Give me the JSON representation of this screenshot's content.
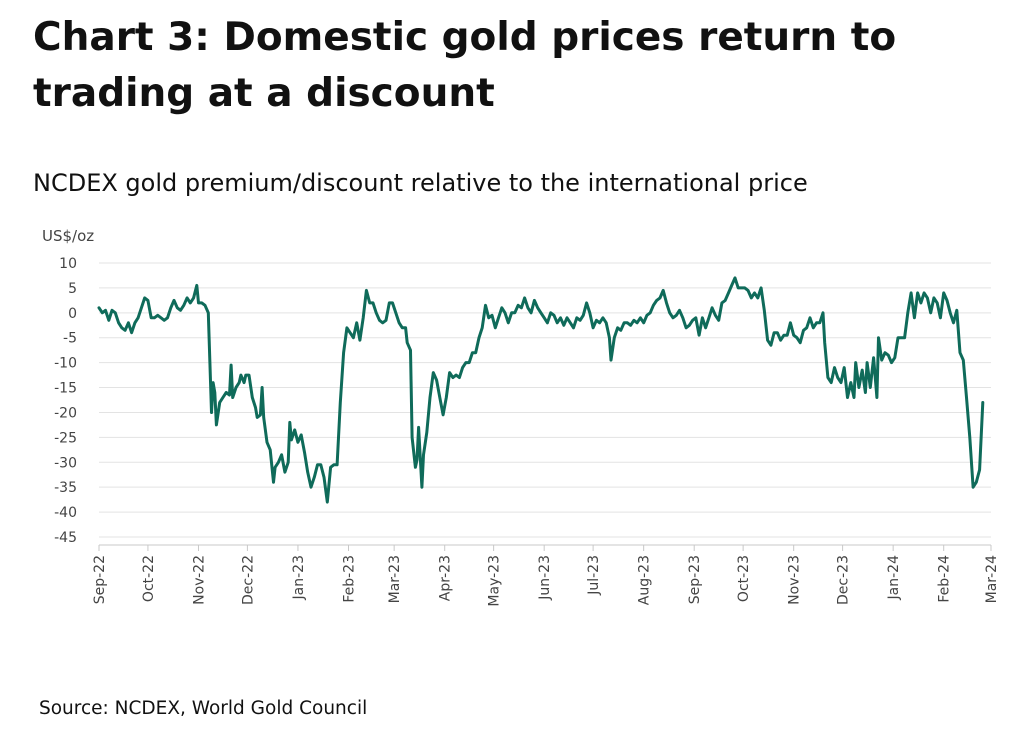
{
  "title": "Chart 3: Domestic gold prices return to trading at a discount",
  "subtitle": "NCDEX gold premium/discount relative to the international price",
  "source": "Source: NCDEX, World Gold Council",
  "colors": {
    "line": "#0f6b5a",
    "grid": "#e3e3e3",
    "text": "#111111"
  },
  "chart_data": {
    "type": "line",
    "ylabel": "US$/oz",
    "ylim": [
      -45,
      10
    ],
    "yticks": [
      10,
      5,
      0,
      -5,
      -10,
      -15,
      -20,
      -25,
      -30,
      -35,
      -40,
      -45
    ],
    "xticks": [
      "Sep-22",
      "Oct-22",
      "Nov-22",
      "Dec-22",
      "Jan-23",
      "Feb-23",
      "Mar-23",
      "Apr-23",
      "May-23",
      "Jun-23",
      "Jul-23",
      "Aug-23",
      "Sep-23",
      "Oct-23",
      "Nov-23",
      "Dec-23",
      "Jan-24",
      "Feb-24",
      "Mar-24"
    ],
    "grid": "horizontal",
    "legend": "none",
    "series": [
      {
        "values": [
          [
            "2022-09-01",
            1
          ],
          [
            "2022-09-03",
            0
          ],
          [
            "2022-09-05",
            0.5
          ],
          [
            "2022-09-07",
            -1.5
          ],
          [
            "2022-09-09",
            0.5
          ],
          [
            "2022-09-11",
            0
          ],
          [
            "2022-09-13",
            -2
          ],
          [
            "2022-09-15",
            -3
          ],
          [
            "2022-09-17",
            -3.5
          ],
          [
            "2022-09-19",
            -2
          ],
          [
            "2022-09-21",
            -4
          ],
          [
            "2022-09-23",
            -2
          ],
          [
            "2022-09-25",
            -1
          ],
          [
            "2022-09-27",
            1
          ],
          [
            "2022-09-29",
            3
          ],
          [
            "2022-10-01",
            2.5
          ],
          [
            "2022-10-03",
            -1
          ],
          [
            "2022-10-05",
            -1
          ],
          [
            "2022-10-07",
            -0.5
          ],
          [
            "2022-10-09",
            -1
          ],
          [
            "2022-10-11",
            -1.5
          ],
          [
            "2022-10-13",
            -1
          ],
          [
            "2022-10-15",
            1
          ],
          [
            "2022-10-17",
            2.5
          ],
          [
            "2022-10-19",
            1
          ],
          [
            "2022-10-21",
            0.5
          ],
          [
            "2022-10-23",
            1.5
          ],
          [
            "2022-10-25",
            3
          ],
          [
            "2022-10-27",
            2
          ],
          [
            "2022-10-29",
            3
          ],
          [
            "2022-10-31",
            5.5
          ],
          [
            "2022-11-01",
            2
          ],
          [
            "2022-11-03",
            2
          ],
          [
            "2022-11-05",
            1.5
          ],
          [
            "2022-11-07",
            0
          ],
          [
            "2022-11-08",
            -10
          ],
          [
            "2022-11-09",
            -20
          ],
          [
            "2022-11-10",
            -14
          ],
          [
            "2022-11-11",
            -16
          ],
          [
            "2022-11-12",
            -22.5
          ],
          [
            "2022-11-14",
            -18
          ],
          [
            "2022-11-16",
            -17
          ],
          [
            "2022-11-18",
            -16
          ],
          [
            "2022-11-20",
            -16.5
          ],
          [
            "2022-11-21",
            -10.5
          ],
          [
            "2022-11-22",
            -17
          ],
          [
            "2022-11-24",
            -15
          ],
          [
            "2022-11-26",
            -14
          ],
          [
            "2022-11-27",
            -12.5
          ],
          [
            "2022-11-29",
            -14
          ],
          [
            "2022-11-30",
            -12.5
          ],
          [
            "2022-12-02",
            -12.5
          ],
          [
            "2022-12-04",
            -17
          ],
          [
            "2022-12-06",
            -19
          ],
          [
            "2022-12-07",
            -21
          ],
          [
            "2022-12-09",
            -20.5
          ],
          [
            "2022-12-10",
            -15
          ],
          [
            "2022-12-11",
            -21
          ],
          [
            "2022-12-13",
            -26
          ],
          [
            "2022-12-15",
            -27.5
          ],
          [
            "2022-12-17",
            -34
          ],
          [
            "2022-12-18",
            -31
          ],
          [
            "2022-12-20",
            -30
          ],
          [
            "2022-12-22",
            -28.5
          ],
          [
            "2022-12-24",
            -32
          ],
          [
            "2022-12-26",
            -30
          ],
          [
            "2022-12-27",
            -22
          ],
          [
            "2022-12-28",
            -25.5
          ],
          [
            "2022-12-30",
            -23.5
          ],
          [
            "2023-01-01",
            -26
          ],
          [
            "2023-01-03",
            -24.5
          ],
          [
            "2023-01-05",
            -28
          ],
          [
            "2023-01-07",
            -32
          ],
          [
            "2023-01-09",
            -35
          ],
          [
            "2023-01-11",
            -33
          ],
          [
            "2023-01-13",
            -30.5
          ],
          [
            "2023-01-15",
            -30.5
          ],
          [
            "2023-01-17",
            -33
          ],
          [
            "2023-01-19",
            -38
          ],
          [
            "2023-01-21",
            -31
          ],
          [
            "2023-01-23",
            -30.5
          ],
          [
            "2023-01-25",
            -30.5
          ],
          [
            "2023-01-27",
            -18
          ],
          [
            "2023-01-29",
            -8
          ],
          [
            "2023-01-31",
            -3
          ],
          [
            "2023-02-02",
            -4
          ],
          [
            "2023-02-04",
            -5
          ],
          [
            "2023-02-06",
            -2
          ],
          [
            "2023-02-08",
            -5.5
          ],
          [
            "2023-02-10",
            -1
          ],
          [
            "2023-02-12",
            4.5
          ],
          [
            "2023-02-14",
            2
          ],
          [
            "2023-02-16",
            2
          ],
          [
            "2023-02-18",
            0
          ],
          [
            "2023-02-20",
            -1.5
          ],
          [
            "2023-02-22",
            -2
          ],
          [
            "2023-02-24",
            -1.5
          ],
          [
            "2023-02-26",
            2
          ],
          [
            "2023-02-28",
            2
          ],
          [
            "2023-03-02",
            0
          ],
          [
            "2023-03-04",
            -2
          ],
          [
            "2023-03-06",
            -3
          ],
          [
            "2023-03-08",
            -3
          ],
          [
            "2023-03-09",
            -6
          ],
          [
            "2023-03-11",
            -7.5
          ],
          [
            "2023-03-12",
            -25
          ],
          [
            "2023-03-14",
            -31
          ],
          [
            "2023-03-15",
            -29.5
          ],
          [
            "2023-03-16",
            -23
          ],
          [
            "2023-03-18",
            -35
          ],
          [
            "2023-03-19",
            -28.5
          ],
          [
            "2023-03-21",
            -24
          ],
          [
            "2023-03-23",
            -17
          ],
          [
            "2023-03-25",
            -12
          ],
          [
            "2023-03-27",
            -13.5
          ],
          [
            "2023-03-29",
            -17
          ],
          [
            "2023-03-31",
            -20.5
          ],
          [
            "2023-04-02",
            -17
          ],
          [
            "2023-04-04",
            -12
          ],
          [
            "2023-04-06",
            -13
          ],
          [
            "2023-04-08",
            -12.5
          ],
          [
            "2023-04-10",
            -13
          ],
          [
            "2023-04-12",
            -11
          ],
          [
            "2023-04-14",
            -10
          ],
          [
            "2023-04-16",
            -10
          ],
          [
            "2023-04-18",
            -8
          ],
          [
            "2023-04-20",
            -8
          ],
          [
            "2023-04-22",
            -5
          ],
          [
            "2023-04-24",
            -3
          ],
          [
            "2023-04-26",
            1.5
          ],
          [
            "2023-04-28",
            -1
          ],
          [
            "2023-04-30",
            -0.5
          ],
          [
            "2023-05-02",
            -3
          ],
          [
            "2023-05-04",
            -1
          ],
          [
            "2023-05-06",
            1
          ],
          [
            "2023-05-08",
            0
          ],
          [
            "2023-05-10",
            -2
          ],
          [
            "2023-05-12",
            0
          ],
          [
            "2023-05-14",
            0
          ],
          [
            "2023-05-16",
            1.5
          ],
          [
            "2023-05-18",
            1
          ],
          [
            "2023-05-20",
            3
          ],
          [
            "2023-05-22",
            1
          ],
          [
            "2023-05-24",
            0
          ],
          [
            "2023-05-26",
            2.5
          ],
          [
            "2023-05-28",
            1
          ],
          [
            "2023-05-30",
            0
          ],
          [
            "2023-06-01",
            -1
          ],
          [
            "2023-06-03",
            -2
          ],
          [
            "2023-06-05",
            0
          ],
          [
            "2023-06-07",
            -0.5
          ],
          [
            "2023-06-09",
            -2
          ],
          [
            "2023-06-11",
            -1
          ],
          [
            "2023-06-13",
            -2.5
          ],
          [
            "2023-06-15",
            -1
          ],
          [
            "2023-06-17",
            -2
          ],
          [
            "2023-06-19",
            -3
          ],
          [
            "2023-06-21",
            -1
          ],
          [
            "2023-06-23",
            -1.5
          ],
          [
            "2023-06-25",
            -0.5
          ],
          [
            "2023-06-27",
            2
          ],
          [
            "2023-06-29",
            0
          ],
          [
            "2023-07-01",
            -3
          ],
          [
            "2023-07-03",
            -1.5
          ],
          [
            "2023-07-05",
            -2
          ],
          [
            "2023-07-07",
            -1
          ],
          [
            "2023-07-09",
            -2
          ],
          [
            "2023-07-11",
            -5
          ],
          [
            "2023-07-12",
            -9.5
          ],
          [
            "2023-07-14",
            -5
          ],
          [
            "2023-07-16",
            -3
          ],
          [
            "2023-07-18",
            -3.5
          ],
          [
            "2023-07-20",
            -2
          ],
          [
            "2023-07-22",
            -2
          ],
          [
            "2023-07-24",
            -2.5
          ],
          [
            "2023-07-26",
            -1.5
          ],
          [
            "2023-07-28",
            -2
          ],
          [
            "2023-07-30",
            -1
          ],
          [
            "2023-08-01",
            -2
          ],
          [
            "2023-08-03",
            -0.5
          ],
          [
            "2023-08-05",
            0
          ],
          [
            "2023-08-07",
            1.5
          ],
          [
            "2023-08-09",
            2.5
          ],
          [
            "2023-08-11",
            3
          ],
          [
            "2023-08-13",
            4.5
          ],
          [
            "2023-08-15",
            2
          ],
          [
            "2023-08-17",
            0
          ],
          [
            "2023-08-19",
            -1
          ],
          [
            "2023-08-21",
            -0.5
          ],
          [
            "2023-08-23",
            0.5
          ],
          [
            "2023-08-25",
            -1
          ],
          [
            "2023-08-27",
            -3
          ],
          [
            "2023-08-29",
            -2.5
          ],
          [
            "2023-08-31",
            -1.5
          ],
          [
            "2023-09-02",
            -1
          ],
          [
            "2023-09-04",
            -4.5
          ],
          [
            "2023-09-06",
            -1
          ],
          [
            "2023-09-08",
            -3
          ],
          [
            "2023-09-10",
            -1
          ],
          [
            "2023-09-12",
            1
          ],
          [
            "2023-09-14",
            -0.5
          ],
          [
            "2023-09-16",
            -1.5
          ],
          [
            "2023-09-18",
            2
          ],
          [
            "2023-09-20",
            2.5
          ],
          [
            "2023-09-22",
            4
          ],
          [
            "2023-09-24",
            5.5
          ],
          [
            "2023-09-26",
            7
          ],
          [
            "2023-09-28",
            5
          ],
          [
            "2023-09-30",
            5
          ],
          [
            "2023-10-02",
            5
          ],
          [
            "2023-10-04",
            4.5
          ],
          [
            "2023-10-06",
            3
          ],
          [
            "2023-10-08",
            4
          ],
          [
            "2023-10-10",
            3
          ],
          [
            "2023-10-12",
            5
          ],
          [
            "2023-10-14",
            0.5
          ],
          [
            "2023-10-16",
            -5.5
          ],
          [
            "2023-10-18",
            -6.5
          ],
          [
            "2023-10-20",
            -4
          ],
          [
            "2023-10-22",
            -4
          ],
          [
            "2023-10-24",
            -5.5
          ],
          [
            "2023-10-26",
            -4.5
          ],
          [
            "2023-10-28",
            -4.5
          ],
          [
            "2023-10-30",
            -2
          ],
          [
            "2023-11-01",
            -4.5
          ],
          [
            "2023-11-03",
            -5
          ],
          [
            "2023-11-05",
            -6
          ],
          [
            "2023-11-07",
            -3.5
          ],
          [
            "2023-11-09",
            -3
          ],
          [
            "2023-11-11",
            -1
          ],
          [
            "2023-11-13",
            -3
          ],
          [
            "2023-11-15",
            -2
          ],
          [
            "2023-11-17",
            -2
          ],
          [
            "2023-11-19",
            0
          ],
          [
            "2023-11-20",
            -6
          ],
          [
            "2023-11-22",
            -13
          ],
          [
            "2023-11-24",
            -14
          ],
          [
            "2023-11-26",
            -11
          ],
          [
            "2023-11-28",
            -13
          ],
          [
            "2023-11-30",
            -14
          ],
          [
            "2023-12-02",
            -11
          ],
          [
            "2023-12-04",
            -17
          ],
          [
            "2023-12-06",
            -14
          ],
          [
            "2023-12-08",
            -17
          ],
          [
            "2023-12-09",
            -10
          ],
          [
            "2023-12-11",
            -15
          ],
          [
            "2023-12-13",
            -11.5
          ],
          [
            "2023-12-15",
            -16
          ],
          [
            "2023-12-16",
            -10
          ],
          [
            "2023-12-18",
            -15
          ],
          [
            "2023-12-20",
            -9
          ],
          [
            "2023-12-22",
            -17
          ],
          [
            "2023-12-23",
            -5
          ],
          [
            "2023-12-25",
            -9.5
          ],
          [
            "2023-12-27",
            -8
          ],
          [
            "2023-12-29",
            -8.5
          ],
          [
            "2023-12-31",
            -10
          ],
          [
            "2024-01-02",
            -9
          ],
          [
            "2024-01-04",
            -5
          ],
          [
            "2024-01-06",
            -5
          ],
          [
            "2024-01-08",
            -5
          ],
          [
            "2024-01-10",
            0
          ],
          [
            "2024-01-12",
            4
          ],
          [
            "2024-01-14",
            -1
          ],
          [
            "2024-01-16",
            4
          ],
          [
            "2024-01-18",
            2
          ],
          [
            "2024-01-20",
            4
          ],
          [
            "2024-01-22",
            3
          ],
          [
            "2024-01-24",
            0
          ],
          [
            "2024-01-26",
            3
          ],
          [
            "2024-01-28",
            2
          ],
          [
            "2024-01-30",
            -1
          ],
          [
            "2024-02-01",
            4
          ],
          [
            "2024-02-03",
            2.5
          ],
          [
            "2024-02-05",
            0
          ],
          [
            "2024-02-07",
            -2
          ],
          [
            "2024-02-09",
            0.5
          ],
          [
            "2024-02-11",
            -8
          ],
          [
            "2024-02-13",
            -9.5
          ],
          [
            "2024-02-15",
            -17
          ],
          [
            "2024-02-17",
            -25
          ],
          [
            "2024-02-19",
            -35
          ],
          [
            "2024-02-21",
            -34
          ],
          [
            "2024-02-23",
            -31.5
          ],
          [
            "2024-02-25",
            -18
          ]
        ]
      }
    ]
  }
}
